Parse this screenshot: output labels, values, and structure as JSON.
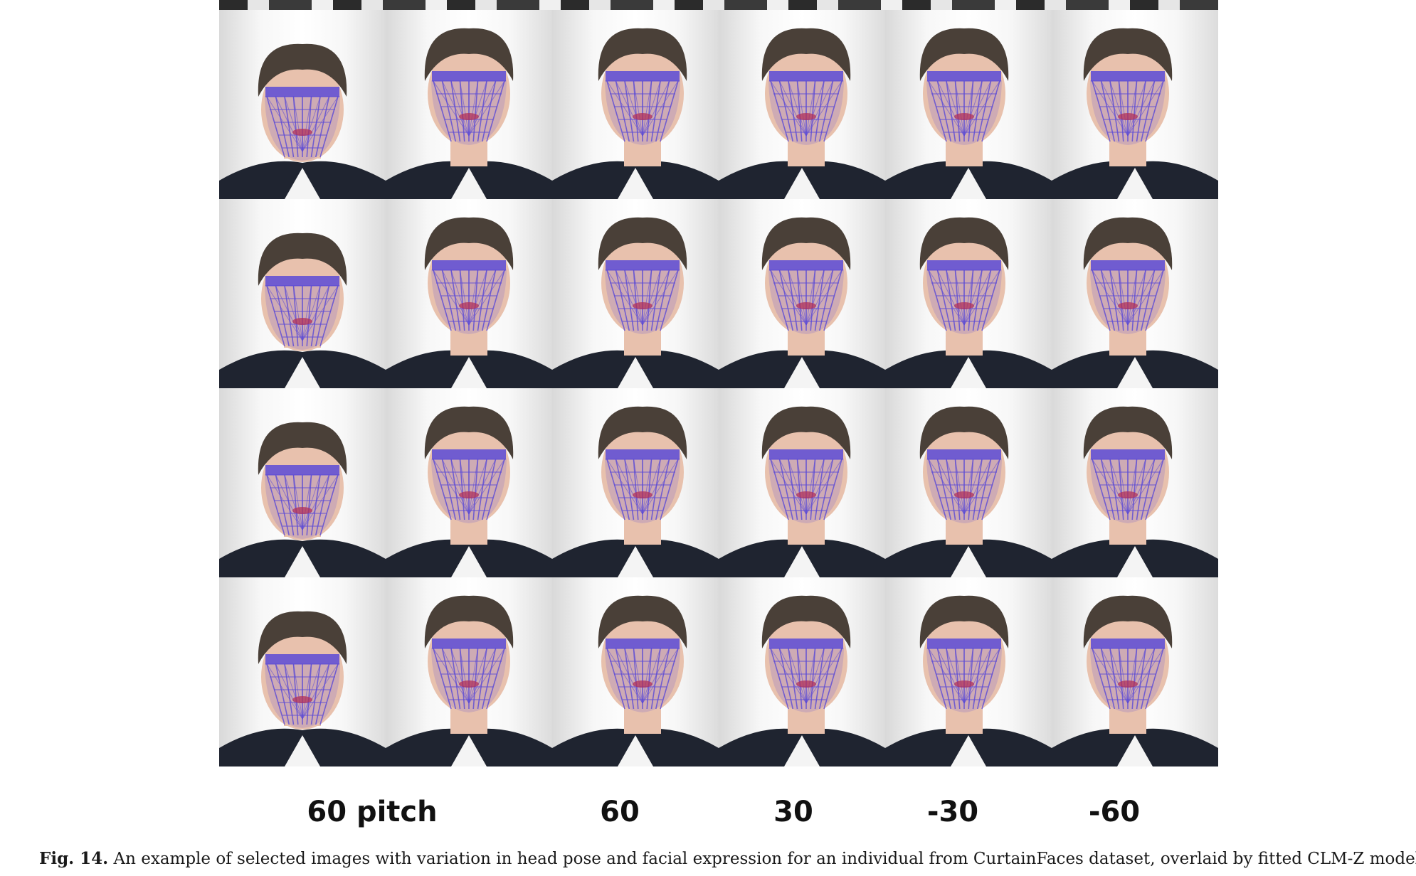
{
  "figure": {
    "photo_grid": {
      "rows": 4,
      "columns": 6,
      "skin_color": "#e8c1ad",
      "hair_color": "#4a4038",
      "suit_color": "#1f2430",
      "mesh_color": "#5b4ad6",
      "mesh_accent": "#b0305a"
    },
    "pose_labels": {
      "pitch_60": "60 pitch",
      "yaw_60": "60",
      "yaw_30": "30",
      "yaw_neg30": "-30",
      "yaw_neg60": "-60"
    },
    "caption": {
      "label": "Fig. 14.",
      "text": " An example of selected images with variation in head pose and facial expression for an individual from CurtainFaces dataset, overlaid by fitted CLM-Z model."
    }
  }
}
